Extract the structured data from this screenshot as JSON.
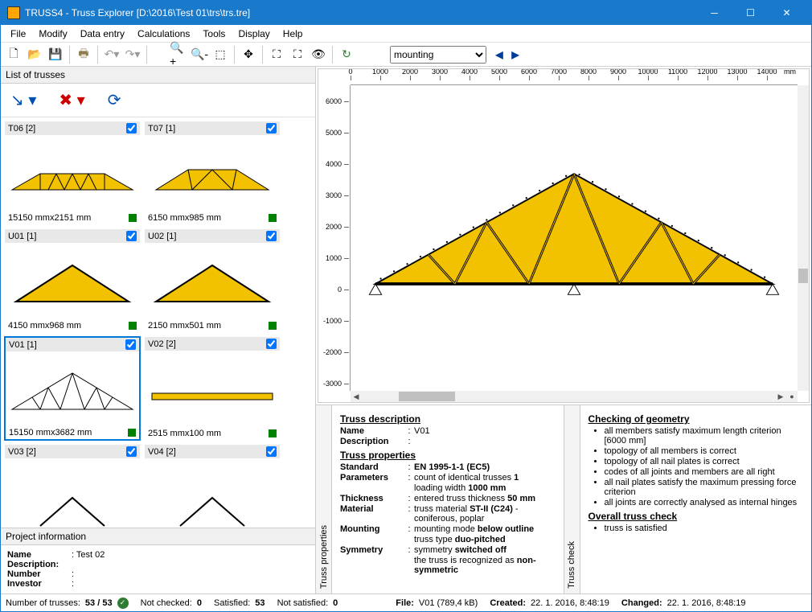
{
  "window": {
    "title": "TRUSS4 - Truss Explorer [D:\\2016\\Test 01\\trs\\trs.tre]"
  },
  "menu": [
    "File",
    "Modify",
    "Data entry",
    "Calculations",
    "Tools",
    "Display",
    "Help"
  ],
  "toolbar": {
    "dropdown_value": "mounting"
  },
  "leftPanel": {
    "title": "List of trusses",
    "trusses": [
      {
        "id": "T06 [2]",
        "dims": "15150 mmx2151 mm",
        "checked": true,
        "type": "truss1"
      },
      {
        "id": "T07 [1]",
        "dims": "6150 mmx985 mm",
        "checked": true,
        "type": "truss2"
      },
      {
        "id": "U01 [1]",
        "dims": "4150 mmx968 mm",
        "checked": true,
        "type": "tri"
      },
      {
        "id": "U02 [1]",
        "dims": "2150 mmx501 mm",
        "checked": true,
        "type": "tri"
      },
      {
        "id": "V01 [1]",
        "dims": "15150 mmx3682 mm",
        "checked": true,
        "type": "fink",
        "selected": true
      },
      {
        "id": "V02 [2]",
        "dims": "2515 mmx100 mm",
        "checked": true,
        "type": "beam"
      },
      {
        "id": "V03 [2]",
        "dims": "",
        "checked": true,
        "type": "partial"
      },
      {
        "id": "V04 [2]",
        "dims": "",
        "checked": true,
        "type": "partial"
      }
    ]
  },
  "projectInfo": {
    "title": "Project information",
    "name_lbl": "Name",
    "name_val": "Test 02",
    "desc_lbl": "Description:",
    "desc_val": "",
    "num_lbl": "Number",
    "num_val": "",
    "inv_lbl": "Investor",
    "inv_val": ""
  },
  "viewport": {
    "hticks": [
      0,
      1000,
      2000,
      3000,
      4000,
      5000,
      6000,
      7000,
      8000,
      9000,
      10000,
      11000,
      12000,
      13000,
      14000
    ],
    "hunit": "mm",
    "vticks": [
      -3000,
      -2000,
      -1000,
      0,
      1000,
      2000,
      3000,
      4000,
      5000,
      6000
    ],
    "truss_color": "#f2c200",
    "truss_stroke": "#000000"
  },
  "trussDesc": {
    "tab": "Truss properties",
    "h1": "Truss description",
    "name_lbl": "Name",
    "name_val": "V01",
    "desc_lbl": "Description",
    "desc_val": "",
    "h2": "Truss properties",
    "std_lbl": "Standard",
    "std_val": "EN 1995-1-1 (EC5)",
    "par_lbl": "Parameters",
    "par_val": "count of identical trusses 1",
    "par_val2": "loading width 1000 mm",
    "thk_lbl": "Thickness",
    "thk_val": "entered truss thickness 50 mm",
    "mat_lbl": "Material",
    "mat_val": "truss material ST-II (C24) - coniferous, poplar",
    "mnt_lbl": "Mounting",
    "mnt_val": "mounting mode below outline",
    "mnt_val2": "truss type duo-pitched",
    "sym_lbl": "Symmetry",
    "sym_val": "symmetry switched off",
    "sym_val2": "the truss is recognized as non-symmetric"
  },
  "trussCheck": {
    "tab": "Truss check",
    "h1": "Checking of geometry",
    "items": [
      "all members satisfy maximum length criterion [6000 mm]",
      "topology of all members is correct",
      "topology of all nail plates is correct",
      "codes of all joints and members are all right",
      "all nail plates satisfy the maximum pressing force criterion",
      "all joints are correctly analysed as internal hinges"
    ],
    "h2": "Overall truss check",
    "items2": [
      "truss is satisfied"
    ]
  },
  "status": {
    "num_lbl": "Number of trusses:",
    "num_val": "53 / 53",
    "nc_lbl": "Not checked:",
    "nc_val": "0",
    "sat_lbl": "Satisfied:",
    "sat_val": "53",
    "ns_lbl": "Not satisfied:",
    "ns_val": "0",
    "file_lbl": "File:",
    "file_val": "V01 (789,4 kB)",
    "cr_lbl": "Created:",
    "cr_val": "22. 1. 2016, 8:48:19",
    "ch_lbl": "Changed:",
    "ch_val": "22. 1. 2016, 8:48:19"
  }
}
